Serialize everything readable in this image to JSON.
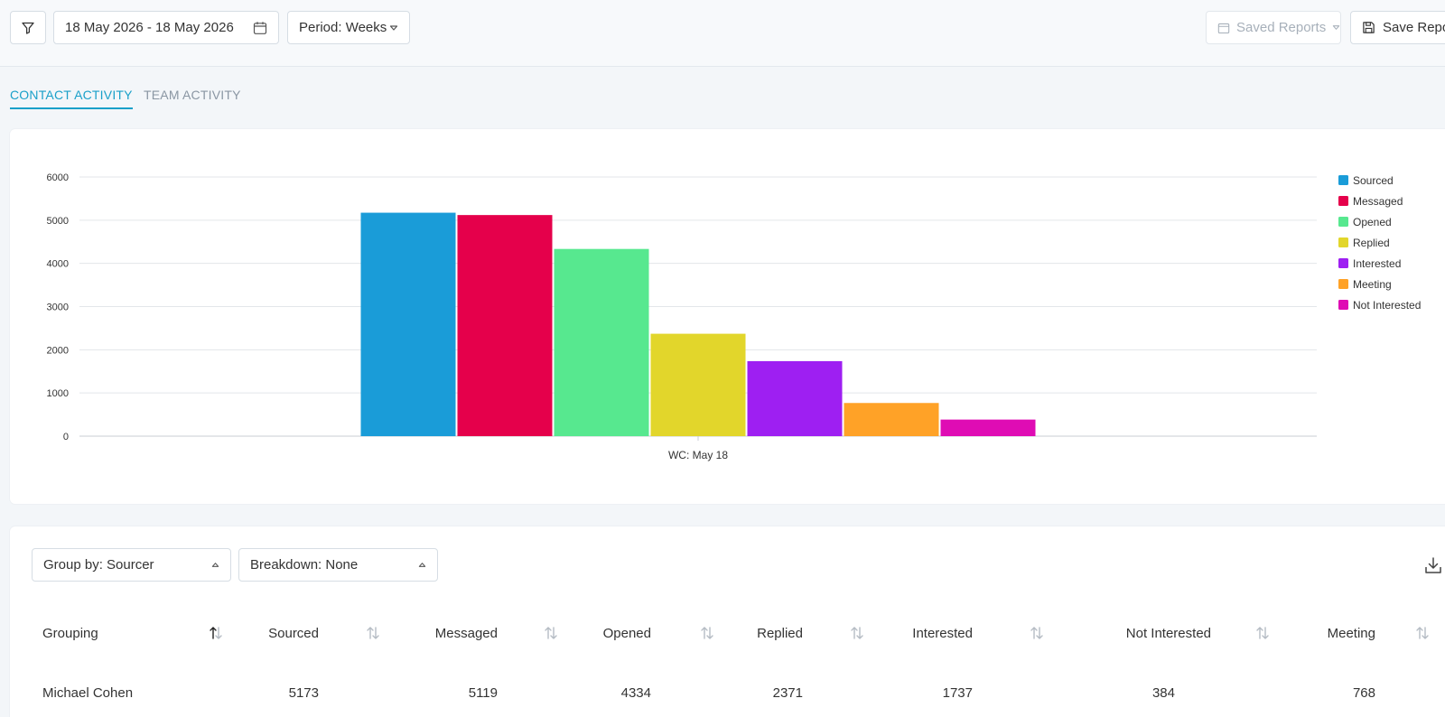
{
  "toolbar": {
    "date_range": "18 May 2026 - 18 May 2026",
    "period_label": "Period: Weeks",
    "saved_reports_label": "Saved Reports",
    "save_report_label": "Save Report"
  },
  "tabs": [
    {
      "label": "CONTACT ACTIVITY",
      "active": true
    },
    {
      "label": "TEAM ACTIVITY",
      "active": false
    }
  ],
  "chart_data": {
    "type": "bar",
    "categories": [
      "WC: May 18"
    ],
    "series": [
      {
        "name": "Sourced",
        "values": [
          5173
        ],
        "color": "#1a9cd8"
      },
      {
        "name": "Messaged",
        "values": [
          5119
        ],
        "color": "#e5004b"
      },
      {
        "name": "Opened",
        "values": [
          4334
        ],
        "color": "#57e88f"
      },
      {
        "name": "Replied",
        "values": [
          2371
        ],
        "color": "#e2d62b"
      },
      {
        "name": "Interested",
        "values": [
          1737
        ],
        "color": "#9e1ff2"
      },
      {
        "name": "Meeting",
        "values": [
          768
        ],
        "color": "#ffa227"
      },
      {
        "name": "Not Interested",
        "values": [
          384
        ],
        "color": "#df0cb4"
      }
    ],
    "yticks": [
      "0",
      "1000",
      "2000",
      "3000",
      "4000",
      "5000",
      "6000"
    ],
    "ylim": [
      0,
      6000
    ],
    "grid": true,
    "legend": "right"
  },
  "table": {
    "group_by_label": "Group by: Sourcer",
    "breakdown_label": "Breakdown: None",
    "columns": [
      "Grouping",
      "Sourced",
      "Messaged",
      "Opened",
      "Replied",
      "Interested",
      "Not Interested",
      "Meeting"
    ],
    "rows": [
      {
        "grouping": "Michael Cohen",
        "sourced": "5173",
        "messaged": "5119",
        "opened": "4334",
        "replied": "2371",
        "interested": "1737",
        "not_interested": "384",
        "meeting": "768"
      }
    ]
  },
  "icons": {
    "filter": "filter-icon",
    "calendar": "calendar-icon",
    "dropdown": "caret-down-icon",
    "save": "floppy-disk-icon",
    "download": "download-icon",
    "sort": "sort-arrows-icon"
  }
}
